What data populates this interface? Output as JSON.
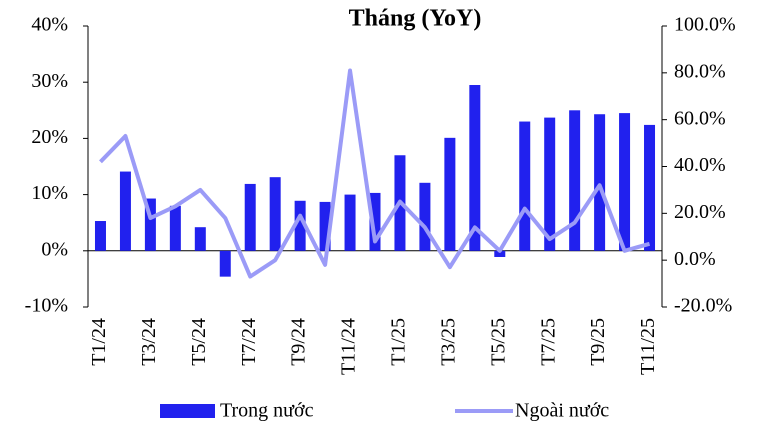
{
  "chart_data": {
    "type": "bar-line",
    "title": "Tháng (YoY)",
    "categories": [
      "T1/24",
      null,
      "T3/24",
      null,
      "T5/24",
      null,
      "T7/24",
      null,
      "T9/24",
      null,
      "T11/24",
      null,
      "T1/25",
      null,
      "T3/25",
      null,
      "T5/25",
      null,
      "T7/25",
      null,
      "T9/25",
      null,
      "T11/25"
    ],
    "series": [
      {
        "name": "Trong nước",
        "type": "bar",
        "color": "#2121ee",
        "axis": "y",
        "values": [
          5.3,
          14.1,
          9.3,
          8.0,
          4.2,
          -4.6,
          11.9,
          13.1,
          8.9,
          8.7,
          10.0,
          10.3,
          17.0,
          12.1,
          20.1,
          29.5,
          -1.1,
          23.0,
          23.7,
          25.0,
          24.3,
          24.5,
          22.4
        ]
      },
      {
        "name": "Ngoài nước",
        "type": "line",
        "color": "#9b9bf7",
        "axis": "y2",
        "values": [
          42,
          53,
          18,
          23,
          30,
          18,
          -7,
          0,
          19,
          -2,
          81,
          8,
          25,
          14,
          -3,
          14,
          4,
          22,
          9,
          16,
          32,
          4,
          7
        ]
      }
    ],
    "ylim": [
      -10,
      40
    ],
    "yticks": [
      {
        "value": -10,
        "label": "-10%"
      },
      {
        "value": 0,
        "label": "0%"
      },
      {
        "value": 10,
        "label": "10%"
      },
      {
        "value": 20,
        "label": "20%"
      },
      {
        "value": 30,
        "label": "30%"
      },
      {
        "value": 40,
        "label": "40%"
      }
    ],
    "y2lim": [
      -20,
      100
    ],
    "y2ticks": [
      {
        "value": -20,
        "label": "-20.0%"
      },
      {
        "value": 0,
        "label": "0.0%"
      },
      {
        "value": 20,
        "label": "20.0%"
      },
      {
        "value": 40,
        "label": "40.0%"
      },
      {
        "value": 60,
        "label": "60.0%"
      },
      {
        "value": 80,
        "label": "80.0%"
      },
      {
        "value": 100,
        "label": "100.0%"
      }
    ],
    "legend": "bottom"
  }
}
